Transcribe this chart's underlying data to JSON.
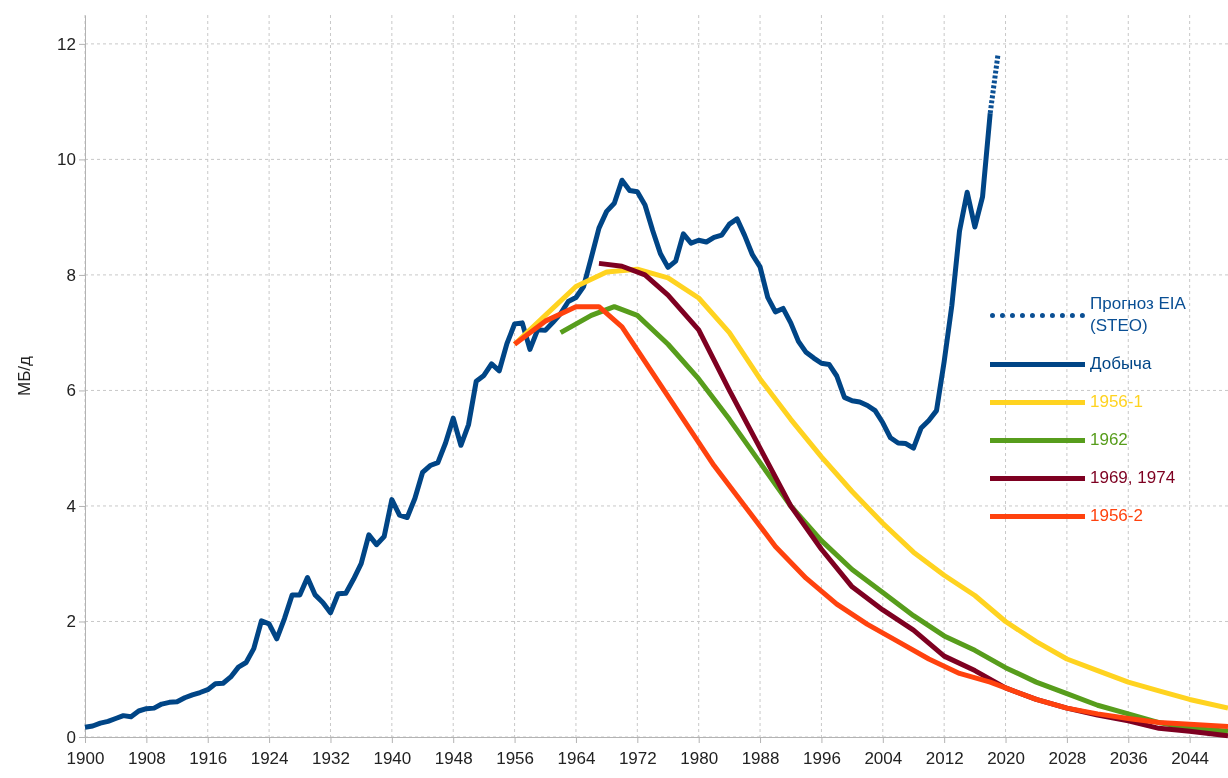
{
  "chart_data": {
    "type": "line",
    "ylabel": "МБ/д",
    "xlim": [
      1900,
      2049
    ],
    "xticks": [
      1900,
      1908,
      1916,
      1924,
      1932,
      1940,
      1948,
      1956,
      1964,
      1972,
      1980,
      1988,
      1996,
      2004,
      2012,
      2020,
      2028,
      2036,
      2044
    ],
    "ylim": [
      0,
      12.5
    ],
    "yticks": [
      0,
      2,
      4,
      6,
      8,
      10,
      12
    ],
    "grid": true,
    "legend": "right",
    "series": [
      {
        "name": "Прогноз EIA (STEO)",
        "color": "#0a4f94",
        "line_style": "dotted",
        "x": [
          2018,
          2019
        ],
        "values": [
          10.8,
          11.8
        ]
      },
      {
        "name": "Добыча",
        "color": "#004586",
        "line_style": "solid",
        "x": [
          1900,
          1901,
          1902,
          1903,
          1904,
          1905,
          1906,
          1907,
          1908,
          1909,
          1910,
          1911,
          1912,
          1913,
          1914,
          1915,
          1916,
          1917,
          1918,
          1919,
          1920,
          1921,
          1922,
          1923,
          1924,
          1925,
          1926,
          1927,
          1928,
          1929,
          1930,
          1931,
          1932,
          1933,
          1934,
          1935,
          1936,
          1937,
          1938,
          1939,
          1940,
          1941,
          1942,
          1943,
          1944,
          1945,
          1946,
          1947,
          1948,
          1949,
          1950,
          1951,
          1952,
          1953,
          1954,
          1955,
          1956,
          1957,
          1958,
          1959,
          1960,
          1961,
          1962,
          1963,
          1964,
          1965,
          1966,
          1967,
          1968,
          1969,
          1970,
          1971,
          1972,
          1973,
          1974,
          1975,
          1976,
          1977,
          1978,
          1979,
          1980,
          1981,
          1982,
          1983,
          1984,
          1985,
          1986,
          1987,
          1988,
          1989,
          1990,
          1991,
          1992,
          1993,
          1994,
          1995,
          1996,
          1997,
          1998,
          1999,
          2000,
          2001,
          2002,
          2003,
          2004,
          2005,
          2006,
          2007,
          2008,
          2009,
          2010,
          2011,
          2012,
          2013,
          2014,
          2015,
          2016,
          2017,
          2018
        ],
        "values": [
          0.17,
          0.19,
          0.24,
          0.27,
          0.32,
          0.37,
          0.35,
          0.45,
          0.49,
          0.5,
          0.57,
          0.6,
          0.61,
          0.68,
          0.73,
          0.77,
          0.82,
          0.92,
          0.93,
          1.04,
          1.21,
          1.29,
          1.53,
          2.01,
          1.96,
          1.7,
          2.05,
          2.46,
          2.46,
          2.76,
          2.46,
          2.33,
          2.15,
          2.48,
          2.49,
          2.73,
          3.0,
          3.5,
          3.33,
          3.47,
          4.11,
          3.84,
          3.8,
          4.13,
          4.58,
          4.7,
          4.75,
          5.09,
          5.52,
          5.05,
          5.41,
          6.16,
          6.26,
          6.46,
          6.34,
          6.81,
          7.15,
          7.17,
          6.71,
          7.05,
          7.04,
          7.18,
          7.33,
          7.54,
          7.61,
          7.8,
          8.3,
          8.81,
          9.1,
          9.24,
          9.64,
          9.46,
          9.44,
          9.21,
          8.77,
          8.37,
          8.13,
          8.24,
          8.71,
          8.55,
          8.6,
          8.57,
          8.65,
          8.69,
          8.88,
          8.97,
          8.68,
          8.35,
          8.14,
          7.61,
          7.36,
          7.42,
          7.17,
          6.85,
          6.66,
          6.56,
          6.47,
          6.45,
          6.25,
          5.88,
          5.82,
          5.8,
          5.74,
          5.65,
          5.44,
          5.18,
          5.09,
          5.08,
          5.0,
          5.35,
          5.48,
          5.65,
          6.5,
          7.47,
          8.76,
          9.43,
          8.83,
          9.35,
          10.8
        ]
      },
      {
        "name": "1956-1",
        "color": "#ffd320",
        "line_style": "solid",
        "x": [
          1956,
          1960,
          1964,
          1968,
          1972,
          1976,
          1980,
          1984,
          1988,
          1992,
          1996,
          2000,
          2004,
          2008,
          2012,
          2016,
          2020,
          2024,
          2028,
          2032,
          2036,
          2040,
          2044,
          2049
        ],
        "values": [
          6.8,
          7.3,
          7.8,
          8.05,
          8.1,
          7.95,
          7.6,
          7.0,
          6.2,
          5.5,
          4.85,
          4.25,
          3.7,
          3.2,
          2.8,
          2.45,
          2.0,
          1.65,
          1.35,
          1.15,
          0.95,
          0.8,
          0.65,
          0.5
        ]
      },
      {
        "name": "1962",
        "color": "#579d1c",
        "line_style": "solid",
        "x": [
          1962,
          1966,
          1969,
          1972,
          1976,
          1980,
          1984,
          1988,
          1992,
          1996,
          2000,
          2004,
          2008,
          2012,
          2016,
          2020,
          2024,
          2028,
          2032,
          2036,
          2040,
          2044,
          2049
        ],
        "values": [
          7.0,
          7.3,
          7.45,
          7.3,
          6.8,
          6.2,
          5.5,
          4.75,
          4.0,
          3.4,
          2.9,
          2.5,
          2.1,
          1.75,
          1.5,
          1.2,
          0.95,
          0.75,
          0.55,
          0.4,
          0.25,
          0.15,
          0.1
        ]
      },
      {
        "name": "1969, 1974",
        "color": "#7e0021",
        "line_style": "solid",
        "x": [
          1967,
          1970,
          1973,
          1976,
          1980,
          1984,
          1988,
          1992,
          1996,
          2000,
          2004,
          2008,
          2012,
          2016,
          2020,
          2024,
          2028,
          2032,
          2036,
          2040,
          2044,
          2049
        ],
        "values": [
          8.2,
          8.15,
          8.0,
          7.65,
          7.05,
          6.0,
          5.0,
          4.0,
          3.25,
          2.6,
          2.2,
          1.85,
          1.4,
          1.15,
          0.85,
          0.65,
          0.5,
          0.38,
          0.28,
          0.15,
          0.1,
          0.02
        ]
      },
      {
        "name": "1956-2",
        "color": "#ff420e",
        "line_style": "solid",
        "x": [
          1956,
          1960,
          1964,
          1967,
          1970,
          1974,
          1978,
          1982,
          1986,
          1990,
          1994,
          1998,
          2002,
          2006,
          2010,
          2014,
          2018,
          2020,
          2024,
          2028,
          2032,
          2036,
          2040,
          2044,
          2049
        ],
        "values": [
          6.8,
          7.2,
          7.45,
          7.45,
          7.1,
          6.3,
          5.5,
          4.7,
          4.0,
          3.3,
          2.75,
          2.3,
          1.95,
          1.65,
          1.35,
          1.1,
          0.95,
          0.85,
          0.65,
          0.5,
          0.4,
          0.32,
          0.25,
          0.22,
          0.18
        ]
      }
    ]
  }
}
